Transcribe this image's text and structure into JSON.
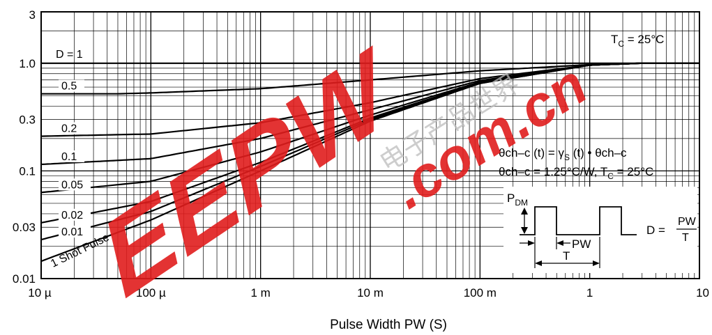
{
  "chart_data": {
    "type": "line",
    "title": "",
    "xlabel": "Pulse Width  PW  (S)",
    "ylabel": "",
    "x_scale": "log",
    "y_scale": "log",
    "xlim": [
      1e-05,
      10
    ],
    "ylim": [
      0.01,
      3
    ],
    "grid": true,
    "x_ticks": [
      {
        "value": 1e-05,
        "label": "10 µ"
      },
      {
        "value": 0.0001,
        "label": "100 µ"
      },
      {
        "value": 0.001,
        "label": "1 m"
      },
      {
        "value": 0.01,
        "label": "10 m"
      },
      {
        "value": 0.1,
        "label": "100 m"
      },
      {
        "value": 1,
        "label": "1"
      },
      {
        "value": 10,
        "label": "10"
      }
    ],
    "y_ticks": [
      {
        "value": 0.01,
        "label": "0.01"
      },
      {
        "value": 0.03,
        "label": "0.03"
      },
      {
        "value": 0.1,
        "label": "0.1"
      },
      {
        "value": 0.3,
        "label": "0.3"
      },
      {
        "value": 1,
        "label": "1.0"
      },
      {
        "value": 3,
        "label": "3"
      }
    ],
    "series": [
      {
        "name": "D = 1",
        "x": [
          1e-05,
          10
        ],
        "y": [
          1.0,
          1.0
        ]
      },
      {
        "name": "0.5",
        "x": [
          1e-05,
          5e-05,
          0.0001,
          0.001,
          0.01,
          0.1,
          1,
          3,
          10
        ],
        "y": [
          0.52,
          0.52,
          0.53,
          0.58,
          0.7,
          0.85,
          0.97,
          1.0,
          1.0
        ]
      },
      {
        "name": "0.2",
        "x": [
          1e-05,
          0.0001,
          0.001,
          0.01,
          0.1,
          1,
          3,
          10
        ],
        "y": [
          0.21,
          0.22,
          0.28,
          0.43,
          0.72,
          0.96,
          1.0,
          1.0
        ]
      },
      {
        "name": "0.1",
        "x": [
          1e-05,
          0.0001,
          0.001,
          0.01,
          0.1,
          1,
          3,
          10
        ],
        "y": [
          0.115,
          0.13,
          0.2,
          0.37,
          0.69,
          0.96,
          1.0,
          1.0
        ]
      },
      {
        "name": "0.05",
        "x": [
          1e-05,
          0.0001,
          0.001,
          0.01,
          0.1,
          1,
          3,
          10
        ],
        "y": [
          0.063,
          0.08,
          0.15,
          0.33,
          0.67,
          0.96,
          1.0,
          1.0
        ]
      },
      {
        "name": "0.02",
        "x": [
          1e-05,
          0.0001,
          0.001,
          0.01,
          0.1,
          1,
          3,
          10
        ],
        "y": [
          0.033,
          0.052,
          0.12,
          0.31,
          0.66,
          0.96,
          1.0,
          1.0
        ]
      },
      {
        "name": "0.01",
        "x": [
          1e-05,
          0.0001,
          0.001,
          0.01,
          0.1,
          1,
          3,
          10
        ],
        "y": [
          0.023,
          0.042,
          0.11,
          0.3,
          0.65,
          0.96,
          1.0,
          1.0
        ]
      },
      {
        "name": "1 Shot Pulse",
        "x": [
          1e-05,
          0.0001,
          0.001,
          0.01,
          0.1,
          1,
          3,
          10
        ],
        "y": [
          0.0145,
          0.035,
          0.1,
          0.29,
          0.65,
          0.96,
          1.0,
          1.0
        ]
      }
    ],
    "annotations": {
      "tc": "T",
      "tc_sub": "C",
      "tc_rest": " = 25°C",
      "eq1_a": "θch–c (t) = γ",
      "eq1_sub": "S",
      "eq1_b": " (t) • θch–c",
      "eq2_a": "θch–c = 1.25°C/W, T",
      "eq2_sub": "C",
      "eq2_b": " = 25°C",
      "pdm": "P",
      "pdm_sub": "DM",
      "pw": "PW",
      "t": "T",
      "d_eq": "D =",
      "d_num": "PW",
      "d_den": "T"
    },
    "watermark": {
      "logo": "EEPW",
      "site": ".com.cn",
      "cn_text": "电子产品世界",
      "logo_color": "#e11d1d"
    }
  }
}
